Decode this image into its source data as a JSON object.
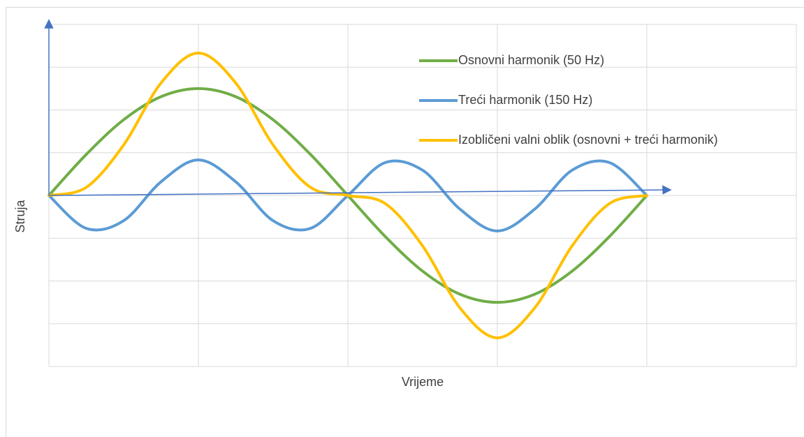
{
  "chart_data": {
    "type": "line",
    "x_label": "Vrijeme",
    "y_label": "Struja",
    "x": [
      0,
      0.25,
      0.5,
      0.75,
      1,
      1.25,
      1.5,
      1.75,
      2,
      2.25,
      2.5,
      2.75,
      3,
      3.25,
      3.5,
      3.75,
      4
    ],
    "series": [
      {
        "name": "Osnovni harmonik (50 Hz)",
        "color": "#70ad47",
        "values": [
          0,
          0.96,
          1.77,
          2.31,
          2.5,
          2.31,
          1.77,
          0.96,
          0,
          -0.96,
          -1.77,
          -2.31,
          -2.5,
          -2.31,
          -1.77,
          -0.96,
          0
        ]
      },
      {
        "name": "Treći harmonik (150 Hz)",
        "color": "#5b9bd5",
        "values": [
          0,
          -0.77,
          -0.59,
          0.32,
          0.83,
          0.32,
          -0.59,
          -0.77,
          0,
          0.77,
          0.59,
          -0.32,
          -0.83,
          -0.32,
          0.59,
          0.77,
          0
        ]
      },
      {
        "name": "Izobličeni valni oblik (osnovni + treći harmonik)",
        "color": "#ffc000",
        "values": [
          0,
          0.19,
          1.18,
          2.63,
          3.33,
          2.63,
          1.18,
          0.19,
          0,
          -0.19,
          -1.18,
          -2.63,
          -3.33,
          -2.63,
          -1.18,
          -0.19,
          0
        ]
      }
    ],
    "xlim": [
      0,
      5
    ],
    "xticks": [
      0,
      1,
      2,
      3,
      4,
      5
    ],
    "ylim": [
      -4,
      4
    ],
    "yticks": [
      -4,
      -3,
      -2,
      -1,
      0,
      1,
      2,
      3,
      4
    ],
    "grid": true,
    "legend": "top-right"
  }
}
